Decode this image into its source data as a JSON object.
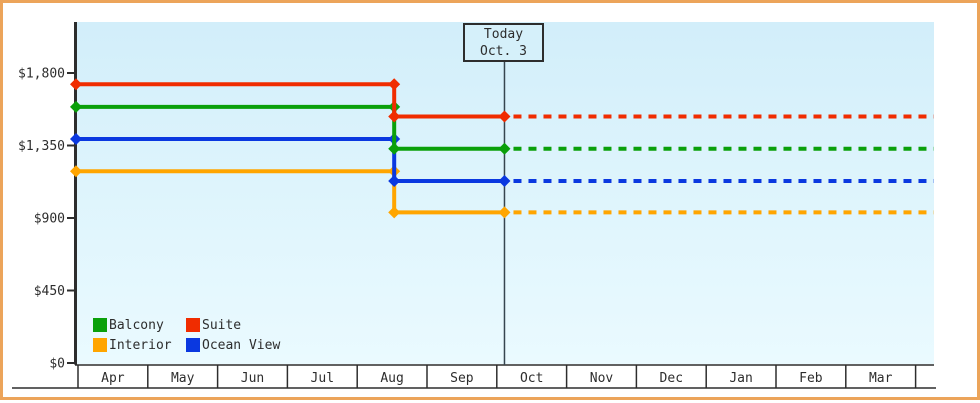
{
  "frame": {
    "border_color": "#eca45a",
    "background": "#ffffff"
  },
  "colors": {
    "axis": "#2d2d2d",
    "grid_box": "#2d2d2d",
    "today_line": "#36454f",
    "text": "#2d2d2d",
    "plot_bg_top": "#d2eefa",
    "plot_bg_bottom": "#eafaff"
  },
  "chart_data": {
    "type": "line",
    "title": "",
    "unit": "USD",
    "y_axis": {
      "min": 0,
      "max": 1800,
      "ticks": [
        {
          "label": "$1,800",
          "value": 1800
        },
        {
          "label": "$1,350",
          "value": 1350
        },
        {
          "label": "$900",
          "value": 900
        },
        {
          "label": "$450",
          "value": 450
        },
        {
          "label": "$0",
          "value": 0
        }
      ]
    },
    "x_axis": {
      "months": [
        "Apr",
        "May",
        "Jun",
        "Jul",
        "Aug",
        "Sep",
        "Oct",
        "Nov",
        "Dec",
        "Jan",
        "Feb",
        "Mar"
      ]
    },
    "today": {
      "line1": "Today",
      "line2": "Oct. 3",
      "month_fraction": 6.11
    },
    "drop_month_fraction": 4.53,
    "x_end_month_fraction": 12.26,
    "style": {
      "solid_before_today": true,
      "dashed_after_today": true,
      "marker": "diamond",
      "line_width": 4
    },
    "series": [
      {
        "name": "Interior",
        "color": "#ffa500",
        "price_before": 1190,
        "price_after": 935
      },
      {
        "name": "Ocean View",
        "color": "#0a38e0",
        "price_before": 1390,
        "price_after": 1130
      },
      {
        "name": "Balcony",
        "color": "#0aa00a",
        "price_before": 1590,
        "price_after": 1330
      },
      {
        "name": "Suite",
        "color": "#f02c00",
        "price_before": 1730,
        "price_after": 1530
      }
    ],
    "legend": {
      "rows": [
        [
          {
            "label": "Balcony",
            "color": "#0aa00a"
          },
          {
            "label": "Suite",
            "color": "#f02c00"
          }
        ],
        [
          {
            "label": "Interior",
            "color": "#ffa500"
          },
          {
            "label": "Ocean View",
            "color": "#0a38e0"
          }
        ]
      ]
    }
  }
}
